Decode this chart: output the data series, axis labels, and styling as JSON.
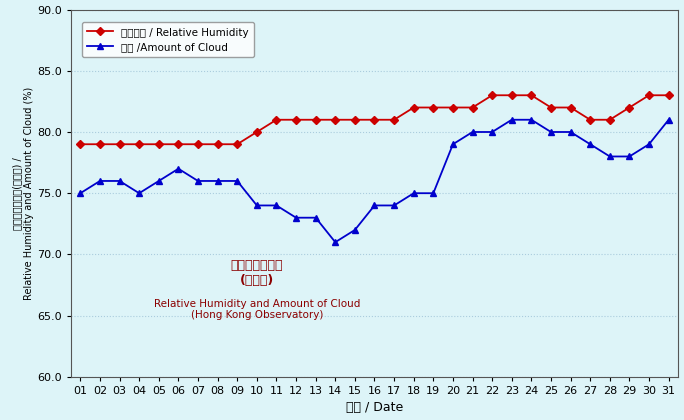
{
  "days": [
    1,
    2,
    3,
    4,
    5,
    6,
    7,
    8,
    9,
    10,
    11,
    12,
    13,
    14,
    15,
    16,
    17,
    18,
    19,
    20,
    21,
    22,
    23,
    24,
    25,
    26,
    27,
    28,
    29,
    30,
    31
  ],
  "relative_humidity": [
    79,
    79,
    79,
    79,
    79,
    79,
    79,
    79,
    79,
    80,
    81,
    81,
    81,
    81,
    81,
    81,
    81,
    82,
    82,
    82,
    82,
    83,
    83,
    83,
    82,
    82,
    81,
    81,
    82,
    83,
    83
  ],
  "cloud_amount": [
    75,
    76,
    76,
    75,
    76,
    77,
    76,
    76,
    76,
    74,
    74,
    73,
    73,
    71,
    72,
    74,
    74,
    75,
    75,
    79,
    80,
    80,
    81,
    81,
    80,
    80,
    79,
    78,
    78,
    79,
    81
  ],
  "rh_color": "#cc0000",
  "cloud_color": "#0000cc",
  "bg_color": "#ddf4f8",
  "fig_bg_color": "#ddf4f8",
  "grid_color": "#aaccdd",
  "ylabel_zh": "相對濕度及雲量(百分比) /",
  "ylabel_en": "Relative Humidity and Amount of Cloud (%)",
  "xlabel": "日期 / Date",
  "legend1_zh": "相對濕度 / Relative Humidity",
  "legend2_zh": "雲量 /Amount of Cloud",
  "annotation_line1": "相對濕度及雲量",
  "annotation_line2": "(天文台)",
  "annotation_line3": "Relative Humidity and Amount of Cloud",
  "annotation_line4": "(Hong Kong Observatory)",
  "annotation_color": "#8b0000",
  "ylim_min": 60.0,
  "ylim_max": 90.0,
  "yticks": [
    60.0,
    65.0,
    70.0,
    75.0,
    80.0,
    85.0,
    90.0
  ]
}
